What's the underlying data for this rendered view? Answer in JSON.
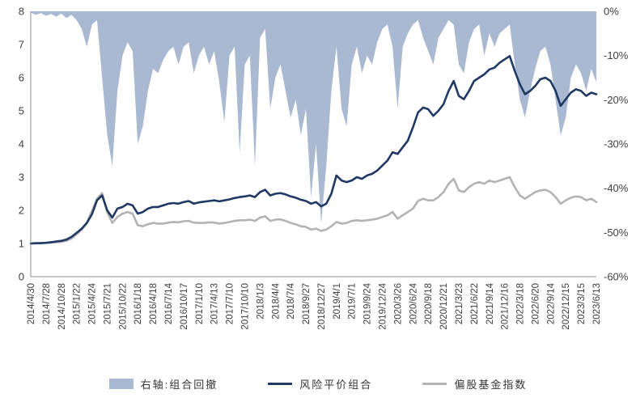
{
  "colors": {
    "area": "#aab9d2",
    "navy": "#1f3864",
    "gray": "#b3b3b3",
    "axis_line": "#8c8c8c",
    "text": "#404040"
  },
  "chart_data": {
    "type": "combo",
    "title": "",
    "left_axis": {
      "label": "",
      "ticks": [
        "0",
        "1",
        "2",
        "3",
        "4",
        "5",
        "6",
        "7",
        "8"
      ],
      "range": [
        0,
        8
      ]
    },
    "right_axis": {
      "label": "",
      "ticks": [
        "0%",
        "-10%",
        "-20%",
        "-30%",
        "-40%",
        "-50%",
        "-60%"
      ],
      "range": [
        0,
        -60
      ]
    },
    "grid": false,
    "legend_position": "bottom",
    "x_tick_labels": [
      "2014/4/30",
      "2014/7/28",
      "2014/10/28",
      "2015/1/22",
      "2015/4/24",
      "2015/7/21",
      "2015/10/22",
      "2016/1/18",
      "2016/4/18",
      "2016/7/14",
      "2016/10/17",
      "2017/1/10",
      "2017/4/13",
      "2017/7/10",
      "2017/10/10",
      "2018/1/3",
      "2018/4/4",
      "2018/7/4",
      "2018/9/27",
      "2018/12/27",
      "2019/4/1",
      "2019/7/1",
      "2019/9/24",
      "2019/12/24",
      "2020/3/26",
      "2020/6/24",
      "2020/9/18",
      "2020/12/21",
      "2021/3/23",
      "2021/6/22",
      "2021/9/14",
      "2021/12/16",
      "2022/3/18",
      "2022/6/20",
      "2022/9/14",
      "2022/12/15",
      "2023/3/15",
      "2023/6/13"
    ],
    "points_per_tick": 3,
    "series": [
      {
        "name": "右轴:组合回撤",
        "type": "area",
        "axis": "right",
        "unit": "%",
        "values": [
          -0.3,
          -0.8,
          -0.4,
          -1.0,
          -0.6,
          -1.2,
          -0.5,
          -1.5,
          -0.8,
          -2.0,
          -4,
          -8,
          -3,
          -2,
          -15,
          -28,
          -35,
          -18,
          -10,
          -7,
          -9,
          -30,
          -26,
          -18,
          -13,
          -14,
          -11,
          -9,
          -8,
          -12,
          -8,
          -7,
          -14,
          -10,
          -8,
          -12,
          -9,
          -16,
          -25,
          -10,
          -8,
          -32,
          -12,
          -10,
          -35,
          -6,
          -4,
          -22,
          -15,
          -12,
          -18,
          -24,
          -20,
          -28,
          -22,
          -42,
          -30,
          -48,
          -35,
          -18,
          -8,
          -22,
          -26,
          -12,
          -8,
          -14,
          -10,
          -12,
          -7,
          -4,
          -3,
          -8,
          -22,
          -8,
          -5,
          -3,
          -2,
          -6,
          -9,
          -12,
          -6,
          -4,
          -2,
          -3,
          -12,
          -14,
          -7,
          -4,
          -3,
          -10,
          -5,
          -8,
          -5,
          -4,
          -3,
          -12,
          -20,
          -24,
          -18,
          -13,
          -9,
          -8,
          -12,
          -20,
          -28,
          -24,
          -15,
          -12,
          -14,
          -18,
          -13,
          -16
        ]
      },
      {
        "name": "风险平价组合",
        "type": "line",
        "axis": "left",
        "values": [
          1.0,
          1.01,
          1.01,
          1.02,
          1.04,
          1.06,
          1.08,
          1.12,
          1.2,
          1.32,
          1.45,
          1.62,
          1.88,
          2.3,
          2.45,
          2.0,
          1.78,
          2.05,
          2.1,
          2.2,
          2.15,
          1.9,
          1.95,
          2.05,
          2.1,
          2.1,
          2.15,
          2.2,
          2.22,
          2.2,
          2.25,
          2.28,
          2.2,
          2.24,
          2.26,
          2.28,
          2.3,
          2.27,
          2.3,
          2.33,
          2.37,
          2.4,
          2.42,
          2.45,
          2.4,
          2.55,
          2.62,
          2.45,
          2.5,
          2.52,
          2.48,
          2.42,
          2.38,
          2.32,
          2.28,
          2.2,
          2.25,
          2.12,
          2.2,
          2.5,
          3.05,
          2.9,
          2.85,
          2.9,
          3.0,
          2.95,
          3.05,
          3.1,
          3.2,
          3.35,
          3.5,
          3.75,
          3.7,
          3.9,
          4.1,
          4.5,
          4.95,
          5.1,
          5.05,
          4.85,
          5.0,
          5.2,
          5.6,
          5.9,
          5.45,
          5.35,
          5.6,
          5.9,
          6.0,
          6.1,
          6.25,
          6.3,
          6.45,
          6.55,
          6.65,
          6.2,
          5.8,
          5.5,
          5.6,
          5.75,
          5.95,
          6.0,
          5.9,
          5.6,
          5.15,
          5.35,
          5.55,
          5.65,
          5.6,
          5.45,
          5.55,
          5.5
        ]
      },
      {
        "name": "偏股基金指数",
        "type": "line",
        "axis": "left",
        "values": [
          1.0,
          1.0,
          1.01,
          1.02,
          1.03,
          1.04,
          1.05,
          1.08,
          1.15,
          1.28,
          1.42,
          1.62,
          1.98,
          2.35,
          2.52,
          1.95,
          1.62,
          1.8,
          1.9,
          1.95,
          1.9,
          1.55,
          1.52,
          1.58,
          1.62,
          1.6,
          1.6,
          1.63,
          1.65,
          1.64,
          1.67,
          1.68,
          1.63,
          1.62,
          1.62,
          1.64,
          1.63,
          1.6,
          1.62,
          1.65,
          1.68,
          1.7,
          1.7,
          1.72,
          1.68,
          1.78,
          1.82,
          1.68,
          1.72,
          1.73,
          1.68,
          1.62,
          1.58,
          1.52,
          1.5,
          1.42,
          1.45,
          1.38,
          1.42,
          1.52,
          1.65,
          1.6,
          1.62,
          1.68,
          1.7,
          1.68,
          1.7,
          1.72,
          1.75,
          1.8,
          1.85,
          1.95,
          1.75,
          1.85,
          1.95,
          2.05,
          2.28,
          2.35,
          2.3,
          2.3,
          2.4,
          2.55,
          2.8,
          2.95,
          2.6,
          2.55,
          2.7,
          2.8,
          2.85,
          2.8,
          2.9,
          2.85,
          2.9,
          2.95,
          3.0,
          2.7,
          2.45,
          2.35,
          2.45,
          2.55,
          2.6,
          2.62,
          2.55,
          2.4,
          2.2,
          2.3,
          2.38,
          2.42,
          2.4,
          2.3,
          2.35,
          2.25
        ]
      }
    ]
  },
  "legend": {
    "items": [
      {
        "label": "右轴:组合回撤",
        "swatch": "area"
      },
      {
        "label": "风险平价组合",
        "swatch": "navy-line"
      },
      {
        "label": "偏股基金指数",
        "swatch": "gray-line"
      }
    ]
  }
}
